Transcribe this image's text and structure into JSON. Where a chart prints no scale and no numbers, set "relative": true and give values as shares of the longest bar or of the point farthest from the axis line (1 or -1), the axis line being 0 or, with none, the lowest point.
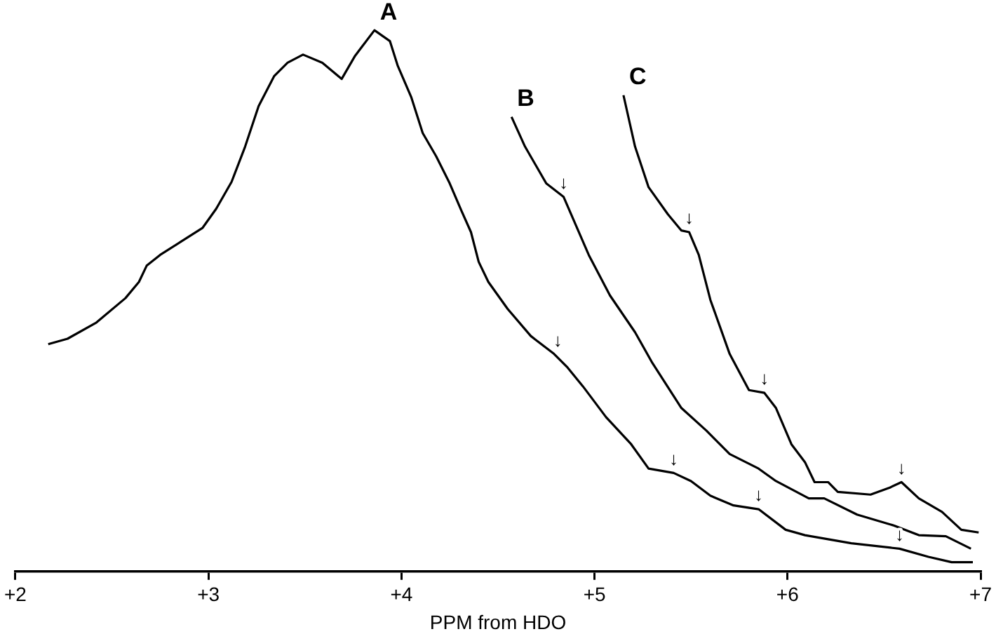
{
  "chart_data": {
    "type": "line",
    "relative": true,
    "xlabel": "PPM from HDO",
    "xlim": [
      2,
      7
    ],
    "xticks": [
      {
        "value": 2,
        "label": "+2"
      },
      {
        "value": 3,
        "label": "+3"
      },
      {
        "value": 4,
        "label": "+4"
      },
      {
        "value": 5,
        "label": "+5"
      },
      {
        "value": 6,
        "label": "+6"
      },
      {
        "value": 7,
        "label": "+7"
      }
    ],
    "grid": false,
    "legend": false,
    "marker": "none",
    "line_style": "solid",
    "series": [
      {
        "name": "A",
        "color": "#000000",
        "x": [
          2.17,
          2.27,
          2.42,
          2.57,
          2.64,
          2.68,
          2.75,
          2.86,
          2.97,
          3.04,
          3.12,
          3.19,
          3.26,
          3.34,
          3.41,
          3.49,
          3.59,
          3.69,
          3.76,
          3.86,
          3.94,
          3.98,
          4.05,
          4.11,
          4.18,
          4.25,
          4.31,
          4.36,
          4.4,
          4.45,
          4.55,
          4.67,
          4.79,
          4.86,
          4.94,
          5.06,
          5.19,
          5.28,
          5.41,
          5.5,
          5.6,
          5.72,
          5.85,
          5.99,
          6.09,
          6.33,
          6.58,
          6.73,
          6.85,
          6.96
        ],
        "values": [
          0.42,
          0.43,
          0.46,
          0.505,
          0.535,
          0.565,
          0.585,
          0.61,
          0.635,
          0.67,
          0.72,
          0.785,
          0.86,
          0.915,
          0.94,
          0.955,
          0.94,
          0.91,
          0.953,
          1,
          0.98,
          0.935,
          0.877,
          0.81,
          0.767,
          0.717,
          0.667,
          0.627,
          0.572,
          0.535,
          0.485,
          0.435,
          0.402,
          0.377,
          0.342,
          0.285,
          0.235,
          0.19,
          0.182,
          0.167,
          0.14,
          0.122,
          0.115,
          0.077,
          0.067,
          0.052,
          0.042,
          0.027,
          0.017,
          0.017
        ]
      },
      {
        "name": "B",
        "color": "#000000",
        "x": [
          4.57,
          4.64,
          4.75,
          4.84,
          4.97,
          5.08,
          5.21,
          5.3,
          5.45,
          5.58,
          5.7,
          5.85,
          5.94,
          6.11,
          6.19,
          6.36,
          6.55,
          6.68,
          6.82,
          6.95
        ],
        "values": [
          0.84,
          0.785,
          0.717,
          0.692,
          0.585,
          0.51,
          0.442,
          0.385,
          0.302,
          0.26,
          0.217,
          0.19,
          0.167,
          0.135,
          0.135,
          0.105,
          0.085,
          0.067,
          0.065,
          0.042
        ]
      },
      {
        "name": "C",
        "color": "#000000",
        "x": [
          5.15,
          5.21,
          5.28,
          5.38,
          5.45,
          5.49,
          5.54,
          5.6,
          5.7,
          5.8,
          5.88,
          5.94,
          6.02,
          6.09,
          6.14,
          6.21,
          6.26,
          6.43,
          6.53,
          6.59,
          6.68,
          6.8,
          6.9,
          6.99
        ],
        "values": [
          0.88,
          0.785,
          0.71,
          0.66,
          0.63,
          0.627,
          0.585,
          0.502,
          0.402,
          0.335,
          0.33,
          0.302,
          0.235,
          0.202,
          0.165,
          0.165,
          0.147,
          0.142,
          0.155,
          0.165,
          0.135,
          0.11,
          0.077,
          0.072
        ]
      }
    ],
    "annotations": [
      {
        "text": "↓",
        "x": 4.81,
        "y": 0.4
      },
      {
        "text": "↓",
        "x": 5.41,
        "y": 0.182
      },
      {
        "text": "↓",
        "x": 5.85,
        "y": 0.115
      },
      {
        "text": "↓",
        "x": 6.58,
        "y": 0.042
      },
      {
        "text": "↓",
        "x": 4.84,
        "y": 0.692
      },
      {
        "text": "↓",
        "x": 5.49,
        "y": 0.627
      },
      {
        "text": "↓",
        "x": 5.88,
        "y": 0.33
      },
      {
        "text": "↓",
        "x": 6.59,
        "y": 0.165
      }
    ]
  }
}
